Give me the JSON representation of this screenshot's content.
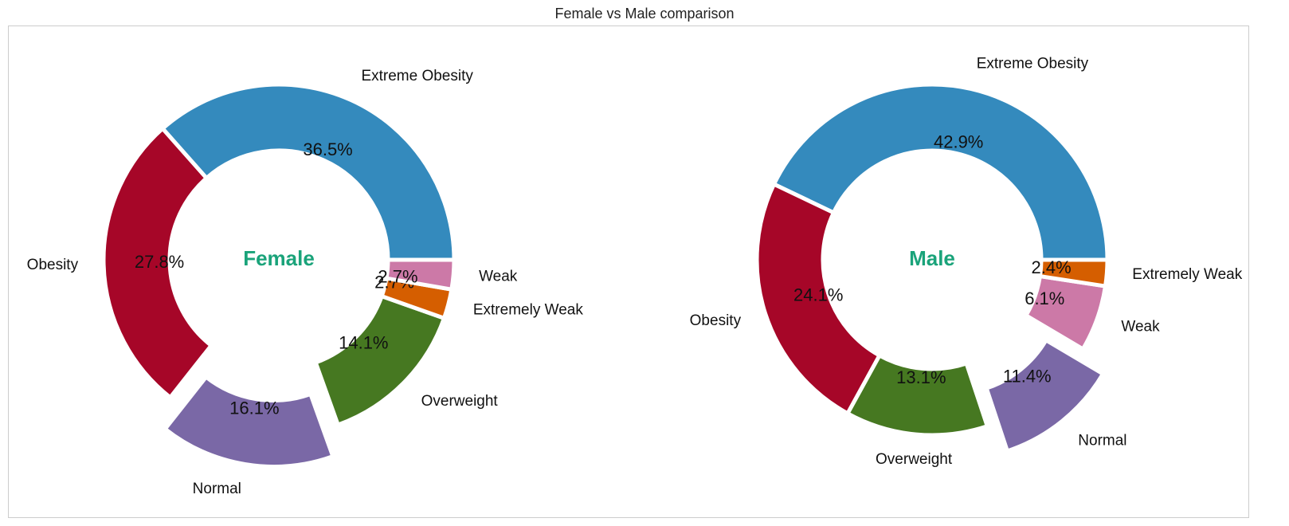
{
  "title": "Female vs Male comparison",
  "colors": {
    "Extreme Obesity": "#348abd",
    "Obesity": "#a60628",
    "Normal": "#7a68a6",
    "Overweight": "#467821",
    "Extremely Weak": "#d55e00",
    "Weak": "#cc79a7",
    "center_text": "#1aa37a"
  },
  "chart_data": [
    {
      "type": "pie",
      "style": "donut",
      "center_label": "Female",
      "slices": [
        {
          "label": "Extreme Obesity",
          "value": 36.5,
          "pct_text": "36.5%",
          "exploded": false
        },
        {
          "label": "Obesity",
          "value": 27.8,
          "pct_text": "27.8%",
          "exploded": false
        },
        {
          "label": "Normal",
          "value": 16.1,
          "pct_text": "16.1%",
          "exploded": true
        },
        {
          "label": "Overweight",
          "value": 14.1,
          "pct_text": "14.1%",
          "exploded": false
        },
        {
          "label": "Extremely Weak",
          "value": 2.7,
          "pct_text": "2.7%",
          "exploded": false
        },
        {
          "label": "Weak",
          "value": 2.7,
          "pct_text": "2.7%",
          "exploded": false
        }
      ]
    },
    {
      "type": "pie",
      "style": "donut",
      "center_label": "Male",
      "slices": [
        {
          "label": "Extreme Obesity",
          "value": 42.9,
          "pct_text": "42.9%",
          "exploded": false
        },
        {
          "label": "Obesity",
          "value": 24.1,
          "pct_text": "24.1%",
          "exploded": false
        },
        {
          "label": "Overweight",
          "value": 13.1,
          "pct_text": "13.1%",
          "exploded": false
        },
        {
          "label": "Normal",
          "value": 11.4,
          "pct_text": "11.4%",
          "exploded": true
        },
        {
          "label": "Weak",
          "value": 6.1,
          "pct_text": "6.1%",
          "exploded": false
        },
        {
          "label": "Extremely Weak",
          "value": 2.4,
          "pct_text": "2.4%",
          "exploded": false
        }
      ]
    }
  ]
}
